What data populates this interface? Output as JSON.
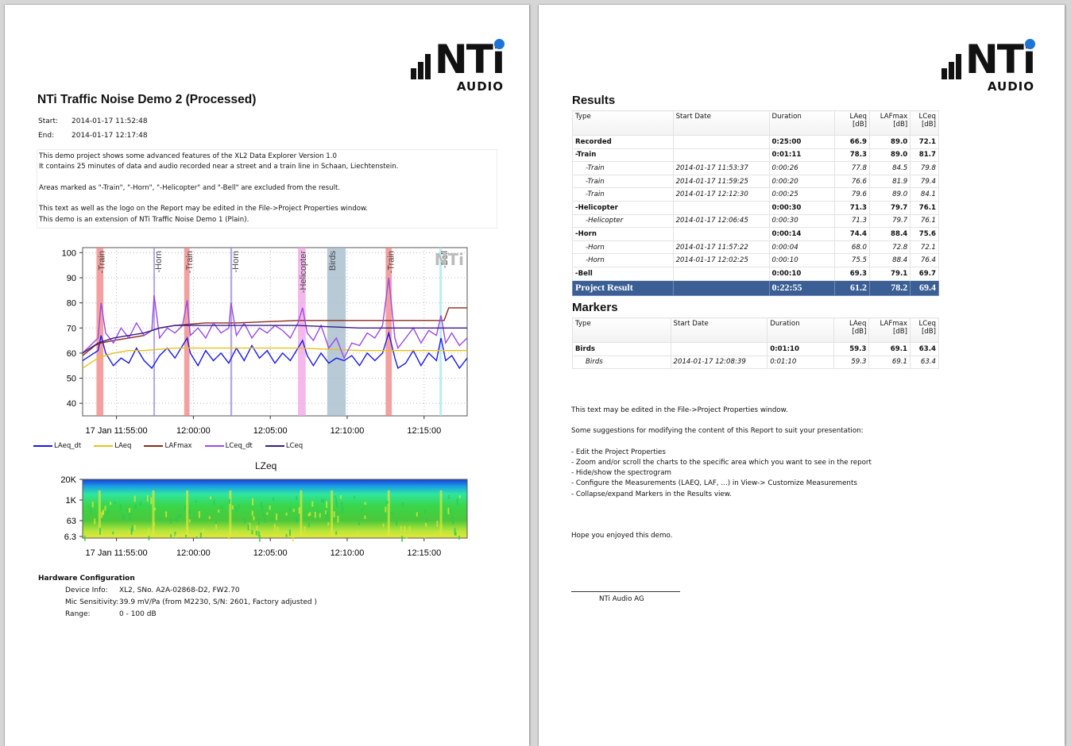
{
  "logo": {
    "brand": "NTi",
    "sub": "AUDIO"
  },
  "page1": {
    "title": "NTi Traffic Noise Demo 2 (Processed)",
    "start_label": "Start:",
    "start_value": "2014-01-17 11:52:48",
    "end_label": "End:",
    "end_value": "2014-01-17 12:17:48",
    "description": [
      "This demo project shows some advanced features of the XL2 Data Explorer Version 1.0",
      "It contains 25 minutes of data and audio recorded near a street and a train line in Schaan, Liechtenstein.",
      "",
      "Areas marked as \"-Train\", \"-Horn\", \"-Helicopter\" and \"-Bell\" are excluded from the result.",
      "",
      "This text as well as the logo on the Report may be edited in the File->Project Properties window.",
      "This demo is an extension of NTi Traffic Noise Demo 1 (Plain)."
    ],
    "legend": [
      {
        "name": "LAeq_dt",
        "color": "#1a1ae6"
      },
      {
        "name": "LAeq",
        "color": "#e6c21a"
      },
      {
        "name": "LAFmax",
        "color": "#8b2a1a"
      },
      {
        "name": "LCeq_dt",
        "color": "#9a4ae6"
      },
      {
        "name": "LCeq",
        "color": "#3a1a8a"
      }
    ],
    "spectro_title": "LZeq",
    "spectro_yticks": [
      "20K",
      "1K",
      "63",
      "6.3"
    ],
    "hardware": {
      "heading": "Hardware Configuration",
      "rows": [
        {
          "k": "Device Info:",
          "v": "XL2, SNo. A2A-02868-D2, FW2.70"
        },
        {
          "k": "Mic Sensitivity:",
          "v": "39.9 mV/Pa (from M2230, S/N: 2601, Factory adjusted )"
        },
        {
          "k": "Range:",
          "v": "0 - 100 dB"
        }
      ]
    }
  },
  "chart_data": {
    "type": "line",
    "x_ticks": [
      "17 Jan 11:55:00",
      "12:00:00",
      "12:05:00",
      "12:10:00",
      "12:15:00"
    ],
    "x_tick_minutes": [
      2.2,
      7.2,
      12.2,
      17.2,
      22.2
    ],
    "xlim_minutes": [
      0,
      25
    ],
    "ylim": [
      35,
      102
    ],
    "y_ticks": [
      40,
      50,
      60,
      70,
      80,
      90,
      100
    ],
    "grid": true,
    "legend_position": "bottom",
    "markers": [
      {
        "label": "-Train",
        "start": 0.9,
        "end": 1.35,
        "color": "#f08080"
      },
      {
        "label": "-Horn",
        "start": 4.6,
        "end": 4.7,
        "color": "#9a8ad8"
      },
      {
        "label": "-Train",
        "start": 6.6,
        "end": 6.95,
        "color": "#f08080"
      },
      {
        "label": "-Horn",
        "start": 9.6,
        "end": 9.72,
        "color": "#9a8ad8"
      },
      {
        "label": "-Helicopter",
        "start": 14.0,
        "end": 14.5,
        "color": "#f0a0e6"
      },
      {
        "label": "Birds",
        "start": 15.9,
        "end": 17.1,
        "color": "#9fb8c8"
      },
      {
        "label": "-Train",
        "start": 19.7,
        "end": 20.1,
        "color": "#f08080"
      },
      {
        "label": "-Bell",
        "start": 23.2,
        "end": 23.35,
        "color": "#a0e8f0"
      }
    ],
    "series": [
      {
        "name": "LAeq_dt",
        "color": "#1a1ae6",
        "x": [
          0,
          0.5,
          1,
          1.2,
          1.5,
          2,
          2.5,
          3,
          3.5,
          4,
          4.5,
          5,
          5.5,
          6,
          6.5,
          6.8,
          7,
          7.5,
          8,
          8.5,
          9,
          9.5,
          10,
          10.5,
          11,
          11.5,
          12,
          12.5,
          13,
          13.5,
          14,
          14.3,
          14.6,
          15,
          15.5,
          16,
          16.5,
          17,
          17.5,
          18,
          18.5,
          19,
          19.5,
          19.9,
          20.3,
          20.5,
          21,
          21.5,
          22,
          22.5,
          23,
          23.3,
          23.6,
          24,
          24.5,
          25
        ],
        "y": [
          57,
          59,
          61,
          67,
          60,
          55,
          58,
          56,
          62,
          57,
          54,
          59,
          62,
          58,
          63,
          66,
          60,
          55,
          61,
          57,
          60,
          56,
          62,
          57,
          63,
          58,
          61,
          56,
          60,
          57,
          62,
          65,
          59,
          55,
          60,
          56,
          58,
          57,
          59,
          55,
          60,
          57,
          60,
          68,
          58,
          54,
          56,
          61,
          55,
          60,
          57,
          66,
          57,
          59,
          54,
          58
        ]
      },
      {
        "name": "LAeq",
        "color": "#e6c21a",
        "x": [
          0,
          0.5,
          1,
          1.5,
          2,
          3,
          4,
          5,
          6,
          7,
          8,
          10,
          12,
          14,
          16,
          18,
          20,
          22,
          24,
          25
        ],
        "y": [
          54,
          56,
          58,
          59,
          60,
          61,
          61,
          61.5,
          62,
          62,
          62,
          62,
          62,
          62,
          61.5,
          61,
          61,
          61,
          61,
          61
        ]
      },
      {
        "name": "LAFmax",
        "color": "#8b2a1a",
        "x": [
          0,
          0.8,
          1.2,
          2,
          3,
          4,
          4.5,
          5,
          6,
          7,
          8,
          10,
          12,
          14,
          16,
          18,
          20,
          22,
          23.5,
          23.8,
          25
        ],
        "y": [
          59,
          63,
          64,
          65,
          66,
          67,
          69,
          70,
          71,
          71.5,
          72,
          72,
          72.5,
          73,
          73,
          73,
          73,
          73,
          73,
          78,
          78
        ]
      },
      {
        "name": "LCeq_dt",
        "color": "#9a4ae6",
        "x": [
          0,
          0.5,
          1,
          1.2,
          1.5,
          2,
          2.5,
          3,
          3.5,
          4,
          4.5,
          4.65,
          5,
          5.5,
          6,
          6.5,
          6.8,
          7,
          7.5,
          8,
          8.5,
          9,
          9.5,
          9.65,
          10,
          10.5,
          11,
          11.5,
          12,
          12.5,
          13,
          13.5,
          14,
          14.3,
          14.6,
          15,
          15.5,
          16,
          16.5,
          17,
          17.5,
          18,
          18.5,
          19,
          19.5,
          19.9,
          20.3,
          20.5,
          21,
          21.5,
          22,
          22.5,
          23,
          23.3,
          23.6,
          24,
          24.5,
          25
        ],
        "y": [
          60,
          63,
          66,
          80,
          68,
          64,
          70,
          66,
          72,
          67,
          69,
          83,
          66,
          70,
          68,
          71,
          81,
          67,
          70,
          66,
          72,
          68,
          70,
          80,
          67,
          72,
          66,
          70,
          68,
          71,
          69,
          66,
          72,
          78,
          68,
          65,
          71,
          62,
          66,
          58,
          64,
          63,
          68,
          66,
          71,
          90,
          66,
          62,
          66,
          70,
          64,
          69,
          67,
          75,
          64,
          68,
          63,
          66
        ]
      },
      {
        "name": "LCeq",
        "color": "#3a1a8a",
        "x": [
          0,
          1,
          2,
          3,
          4,
          5,
          6,
          7,
          8,
          10,
          12,
          14,
          16,
          18,
          20,
          22,
          24,
          25
        ],
        "y": [
          60,
          64,
          66,
          67,
          68,
          70,
          71,
          71,
          71,
          71,
          71,
          71,
          70.5,
          70,
          70,
          70,
          70,
          70
        ]
      }
    ],
    "spectrogram": {
      "type": "heatmap",
      "title": "LZeq",
      "y_ticks": [
        "20K",
        "1K",
        "63",
        "6.3"
      ]
    }
  },
  "page2": {
    "results_title": "Results",
    "markers_title": "Markers",
    "table_headers": [
      {
        "l1": "Type",
        "l2": ""
      },
      {
        "l1": "Start Date",
        "l2": ""
      },
      {
        "l1": "Duration",
        "l2": ""
      },
      {
        "l1": "LAeq",
        "l2": "[dB]"
      },
      {
        "l1": "LAFmax",
        "l2": "[dB]"
      },
      {
        "l1": "LCeq",
        "l2": "[dB]"
      }
    ],
    "results_rows": [
      {
        "style": "b",
        "cells": [
          "Recorded",
          "",
          "0:25:00",
          "66.9",
          "89.0",
          "72.1"
        ]
      },
      {
        "style": "b",
        "cells": [
          "-Train",
          "",
          "0:01:11",
          "78.3",
          "89.0",
          "81.7"
        ]
      },
      {
        "style": "i",
        "cells": [
          "-Train",
          "2014-01-17 11:53:37",
          "0:00:26",
          "77.8",
          "84.5",
          "79.8"
        ]
      },
      {
        "style": "i",
        "cells": [
          "-Train",
          "2014-01-17 11:59:25",
          "0:00:20",
          "76.6",
          "81.9",
          "79.4"
        ]
      },
      {
        "style": "i",
        "cells": [
          "-Train",
          "2014-01-17 12:12:30",
          "0:00:25",
          "79.6",
          "89.0",
          "84.1"
        ]
      },
      {
        "style": "b",
        "cells": [
          "-Helicopter",
          "",
          "0:00:30",
          "71.3",
          "79.7",
          "76.1"
        ]
      },
      {
        "style": "i",
        "cells": [
          "-Helicopter",
          "2014-01-17 12:06:45",
          "0:00:30",
          "71.3",
          "79.7",
          "76.1"
        ]
      },
      {
        "style": "b",
        "cells": [
          "-Horn",
          "",
          "0:00:14",
          "74.4",
          "88.4",
          "75.6"
        ]
      },
      {
        "style": "i",
        "cells": [
          "-Horn",
          "2014-01-17 11:57:22",
          "0:00:04",
          "68.0",
          "72.8",
          "72.1"
        ]
      },
      {
        "style": "i",
        "cells": [
          "-Horn",
          "2014-01-17 12:02:25",
          "0:00:10",
          "75.5",
          "88.4",
          "76.4"
        ]
      },
      {
        "style": "b",
        "cells": [
          "-Bell",
          "",
          "0:00:10",
          "69.3",
          "79.1",
          "69.7"
        ]
      },
      {
        "style": "proj",
        "cells": [
          "Project Result",
          "",
          "0:22:55",
          "61.2",
          "78.2",
          "69.4"
        ]
      }
    ],
    "markers_rows": [
      {
        "style": "b",
        "cells": [
          "Birds",
          "",
          "0:01:10",
          "59.3",
          "69.1",
          "63.4"
        ]
      },
      {
        "style": "i",
        "cells": [
          "Birds",
          "2014-01-17 12:08:39",
          "0:01:10",
          "59.3",
          "69.1",
          "63.4"
        ]
      }
    ],
    "text1": "This text may be edited in the File->Project Properties window.",
    "text2": "Some suggestions for modifying the content of this Report to suit your presentation:",
    "suggestions": [
      "- Edit the Project Properties",
      "- Zoom and/or scroll the charts to the specific area which you want to see in the report",
      "- Hide/show the spectrogram",
      "- Configure the Measurements (LAEQ, LAF, ...) in View-> Customize Measurements",
      "- Collapse/expand Markers in the Results view."
    ],
    "closing": "Hope you enjoyed this demo.",
    "signature": "NTi Audio AG"
  }
}
